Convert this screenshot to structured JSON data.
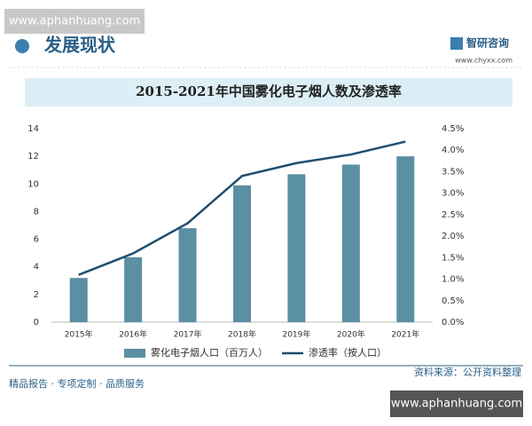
{
  "watermark_top": "www.aphanhuang.com",
  "header": "发展现状",
  "logo": {
    "name": "智研咨询",
    "url": "www.chyxx.com"
  },
  "source": "资料来源：公开资料整理",
  "footer": "精品报告 · 专项定制 · 品质服务",
  "watermark_bottom": "www.aphanhuang.com",
  "chart_data": {
    "type": "bar",
    "title": "2015-2021年中国雾化电子烟人数及渗透率",
    "categories": [
      "2015年",
      "2016年",
      "2017年",
      "2018年",
      "2019年",
      "2020年",
      "2021年"
    ],
    "series": [
      {
        "name": "雾化电子烟人口（百万人）",
        "type": "bar",
        "color": "#5b8fa3",
        "values": [
          3.2,
          4.7,
          6.8,
          9.9,
          10.7,
          11.4,
          12.0
        ]
      },
      {
        "name": "渗透率（按人口）",
        "type": "line",
        "axis": "y2",
        "color": "#1f4e6e",
        "values": [
          1.1,
          1.6,
          2.3,
          3.4,
          3.7,
          3.9,
          4.2
        ]
      }
    ],
    "ylim": [
      0,
      14
    ],
    "yticks": [
      0,
      2,
      4,
      6,
      8,
      10,
      12,
      14
    ],
    "y2lim": [
      0,
      4.5
    ],
    "y2ticks": [
      {
        "value": 0,
        "label": "0.0%"
      },
      {
        "value": 0.5,
        "label": "0.5%"
      },
      {
        "value": 1,
        "label": "1.0%"
      },
      {
        "value": 1.5,
        "label": "1.5%"
      },
      {
        "value": 2,
        "label": "2.0%"
      },
      {
        "value": 2.5,
        "label": "2.5%"
      },
      {
        "value": 3,
        "label": "3.0%"
      },
      {
        "value": 3.5,
        "label": "3.5%"
      },
      {
        "value": 4,
        "label": "4.0%"
      },
      {
        "value": 4.5,
        "label": "4.5%"
      }
    ],
    "grid": false,
    "legend": "bottom"
  }
}
